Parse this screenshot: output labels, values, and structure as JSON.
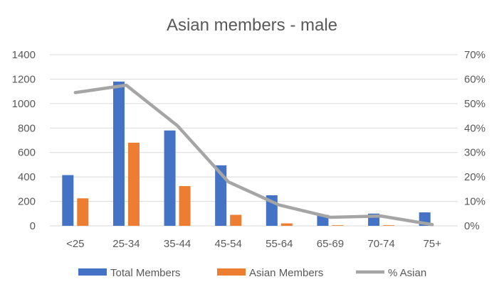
{
  "chart_data": {
    "type": "bar",
    "title": "Asian members  - male",
    "categories": [
      "<25",
      "25-34",
      "35-44",
      "45-54",
      "55-64",
      "65-69",
      "70-74",
      "75+"
    ],
    "series": [
      {
        "name": "Total Members",
        "kind": "bar",
        "axis": "left",
        "color": "#4472C4",
        "values": [
          415,
          1180,
          780,
          495,
          250,
          90,
          100,
          110
        ]
      },
      {
        "name": "Asian Members",
        "kind": "bar",
        "axis": "left",
        "color": "#ED7D31",
        "values": [
          225,
          680,
          325,
          90,
          20,
          5,
          5,
          0
        ]
      },
      {
        "name": "% Asian",
        "kind": "line",
        "axis": "right",
        "color": "#A5A5A5",
        "values": [
          0.545,
          0.575,
          0.41,
          0.18,
          0.085,
          0.035,
          0.04,
          0.005
        ]
      }
    ],
    "left_axis": {
      "min": 0,
      "max": 1400,
      "ticks": [
        "0",
        "200",
        "400",
        "600",
        "800",
        "1000",
        "1200",
        "1400"
      ]
    },
    "right_axis": {
      "min": 0,
      "max": 0.7,
      "ticks": [
        "0%",
        "10%",
        "20%",
        "30%",
        "40%",
        "50%",
        "60%",
        "70%"
      ]
    },
    "grid": true,
    "legend_position": "bottom"
  }
}
